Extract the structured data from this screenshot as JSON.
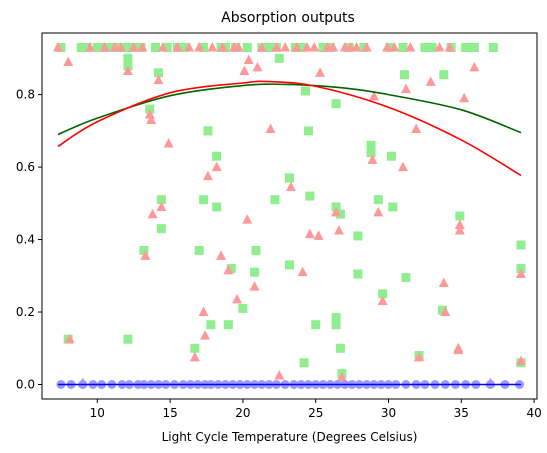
{
  "chart_data": {
    "type": "scatter",
    "title": "Absorption outputs",
    "xlabel": "Light Cycle Temperature (Degrees Celsius)",
    "ylabel": "",
    "xlim": [
      6.2,
      40.2
    ],
    "ylim": [
      -0.04,
      0.97
    ],
    "xticks": [
      10,
      15,
      20,
      25,
      30,
      35,
      40
    ],
    "yticks": [
      0.0,
      0.2,
      0.4,
      0.6,
      0.8
    ],
    "ytick_labels": [
      "0.0",
      "0.2",
      "0.4",
      "0.6",
      "0.8"
    ],
    "grid": false,
    "series": [
      {
        "marker": "square",
        "color": "#90EE90",
        "points": [
          [
            7.5,
            0.93
          ],
          [
            8.0,
            0.125
          ],
          [
            8.9,
            0.93
          ],
          [
            9.3,
            0.93
          ],
          [
            10.0,
            0.93
          ],
          [
            10.5,
            0.93
          ],
          [
            11.0,
            0.93
          ],
          [
            11.5,
            0.93
          ],
          [
            12.0,
            0.93
          ],
          [
            12.1,
            0.9
          ],
          [
            12.1,
            0.88
          ],
          [
            12.1,
            0.125
          ],
          [
            12.5,
            0.93
          ],
          [
            13.0,
            0.93
          ],
          [
            13.2,
            0.37
          ],
          [
            13.6,
            0.76
          ],
          [
            14.0,
            0.93
          ],
          [
            14.2,
            0.86
          ],
          [
            14.4,
            0.51
          ],
          [
            14.4,
            0.43
          ],
          [
            14.8,
            0.93
          ],
          [
            15.5,
            0.93
          ],
          [
            16.0,
            0.93
          ],
          [
            16.7,
            0.1
          ],
          [
            17.0,
            0.37
          ],
          [
            17.3,
            0.51
          ],
          [
            17.3,
            0.93
          ],
          [
            17.6,
            0.7
          ],
          [
            17.8,
            0.165
          ],
          [
            18.2,
            0.63
          ],
          [
            18.2,
            0.49
          ],
          [
            18.5,
            0.93
          ],
          [
            18.8,
            0.93
          ],
          [
            19.2,
            0.32
          ],
          [
            19.0,
            0.165
          ],
          [
            19.5,
            0.93
          ],
          [
            20.0,
            0.21
          ],
          [
            20.3,
            0.93
          ],
          [
            20.8,
            0.31
          ],
          [
            20.9,
            0.37
          ],
          [
            21.3,
            0.93
          ],
          [
            21.8,
            0.93
          ],
          [
            22.2,
            0.51
          ],
          [
            22.3,
            0.93
          ],
          [
            22.5,
            0.9
          ],
          [
            23.2,
            0.57
          ],
          [
            23.2,
            0.33
          ],
          [
            23.6,
            0.93
          ],
          [
            24.0,
            0.93
          ],
          [
            24.2,
            0.06
          ],
          [
            24.3,
            0.81
          ],
          [
            24.5,
            0.7
          ],
          [
            24.6,
            0.52
          ],
          [
            25.0,
            0.165
          ],
          [
            25.5,
            0.93
          ],
          [
            26.0,
            0.93
          ],
          [
            26.4,
            0.775
          ],
          [
            26.4,
            0.49
          ],
          [
            26.4,
            0.185
          ],
          [
            26.4,
            0.165
          ],
          [
            26.7,
            0.1
          ],
          [
            26.8,
            0.03
          ],
          [
            26.7,
            0.47
          ],
          [
            27.3,
            0.93
          ],
          [
            27.9,
            0.41
          ],
          [
            27.9,
            0.305
          ],
          [
            28.3,
            0.93
          ],
          [
            28.8,
            0.66
          ],
          [
            28.8,
            0.64
          ],
          [
            29.3,
            0.51
          ],
          [
            29.6,
            0.25
          ],
          [
            30.1,
            0.93
          ],
          [
            30.2,
            0.63
          ],
          [
            30.3,
            0.49
          ],
          [
            31.0,
            0.93
          ],
          [
            31.1,
            0.855
          ],
          [
            31.2,
            0.295
          ],
          [
            32.1,
            0.08
          ],
          [
            32.5,
            0.93
          ],
          [
            33.0,
            0.93
          ],
          [
            33.7,
            0.205
          ],
          [
            33.8,
            0.855
          ],
          [
            34.3,
            0.93
          ],
          [
            34.9,
            0.465
          ],
          [
            35.3,
            0.93
          ],
          [
            35.9,
            0.93
          ],
          [
            37.2,
            0.93
          ],
          [
            39.1,
            0.385
          ],
          [
            39.1,
            0.32
          ],
          [
            39.1,
            0.06
          ]
        ]
      },
      {
        "marker": "triangle",
        "color": "#FF9999",
        "points": [
          [
            7.3,
            0.93
          ],
          [
            8.0,
            0.89
          ],
          [
            8.1,
            0.125
          ],
          [
            9.0,
            0.005
          ],
          [
            9.5,
            0.93
          ],
          [
            10.5,
            0.93
          ],
          [
            11.2,
            0.93
          ],
          [
            11.6,
            0.93
          ],
          [
            12.1,
            0.865
          ],
          [
            12.5,
            0.93
          ],
          [
            13.1,
            0.93
          ],
          [
            13.3,
            0.355
          ],
          [
            13.6,
            0.745
          ],
          [
            13.7,
            0.73
          ],
          [
            13.8,
            0.47
          ],
          [
            14.2,
            0.84
          ],
          [
            14.4,
            0.49
          ],
          [
            14.5,
            0.93
          ],
          [
            14.9,
            0.665
          ],
          [
            15.5,
            0.93
          ],
          [
            16.3,
            0.93
          ],
          [
            16.7,
            0.075
          ],
          [
            17.0,
            0.93
          ],
          [
            17.3,
            0.2
          ],
          [
            17.4,
            0.135
          ],
          [
            17.6,
            0.575
          ],
          [
            17.9,
            0.93
          ],
          [
            18.2,
            0.6
          ],
          [
            18.5,
            0.355
          ],
          [
            18.6,
            0.93
          ],
          [
            19.0,
            0.315
          ],
          [
            19.4,
            0.93
          ],
          [
            19.6,
            0.235
          ],
          [
            19.7,
            0.93
          ],
          [
            20.1,
            0.865
          ],
          [
            20.3,
            0.455
          ],
          [
            20.4,
            0.895
          ],
          [
            20.8,
            0.27
          ],
          [
            21.0,
            0.875
          ],
          [
            21.3,
            0.93
          ],
          [
            21.9,
            0.705
          ],
          [
            22.3,
            0.93
          ],
          [
            22.5,
            0.025
          ],
          [
            22.9,
            0.93
          ],
          [
            23.3,
            0.545
          ],
          [
            23.7,
            0.93
          ],
          [
            24.1,
            0.31
          ],
          [
            24.4,
            0.93
          ],
          [
            24.6,
            0.415
          ],
          [
            24.9,
            0.93
          ],
          [
            25.2,
            0.41
          ],
          [
            25.3,
            0.86
          ],
          [
            25.8,
            0.93
          ],
          [
            26.2,
            0.93
          ],
          [
            26.4,
            0.475
          ],
          [
            26.6,
            0.425
          ],
          [
            26.8,
            0.02
          ],
          [
            27.0,
            0.93
          ],
          [
            27.4,
            0.93
          ],
          [
            27.8,
            0.93
          ],
          [
            28.5,
            0.93
          ],
          [
            28.9,
            0.62
          ],
          [
            29.0,
            0.795
          ],
          [
            29.3,
            0.475
          ],
          [
            29.6,
            0.23
          ],
          [
            29.9,
            0.93
          ],
          [
            30.4,
            0.93
          ],
          [
            31.0,
            0.6
          ],
          [
            31.2,
            0.815
          ],
          [
            31.5,
            0.93
          ],
          [
            31.9,
            0.705
          ],
          [
            32.1,
            0.075
          ],
          [
            32.9,
            0.835
          ],
          [
            33.5,
            0.93
          ],
          [
            33.8,
            0.28
          ],
          [
            33.9,
            0.2
          ],
          [
            34.2,
            0.93
          ],
          [
            34.9,
            0.44
          ],
          [
            34.9,
            0.425
          ],
          [
            34.8,
            0.1
          ],
          [
            34.8,
            0.095
          ],
          [
            35.2,
            0.79
          ],
          [
            35.9,
            0.875
          ],
          [
            37.0,
            0.005
          ],
          [
            39.1,
            0.305
          ],
          [
            39.1,
            0.065
          ]
        ]
      },
      {
        "marker": "circle",
        "color": "#9999FF",
        "points": [
          [
            7.5,
            0.0
          ],
          [
            8.2,
            0.0
          ],
          [
            9.0,
            0.0
          ],
          [
            9.7,
            0.0
          ],
          [
            10.3,
            0.0
          ],
          [
            11.0,
            0.0
          ],
          [
            11.7,
            0.0
          ],
          [
            12.2,
            0.0
          ],
          [
            12.8,
            0.0
          ],
          [
            13.2,
            0.0
          ],
          [
            13.7,
            0.0
          ],
          [
            14.2,
            0.0
          ],
          [
            14.7,
            0.0
          ],
          [
            15.3,
            0.0
          ],
          [
            15.9,
            0.0
          ],
          [
            16.4,
            0.0
          ],
          [
            16.9,
            0.0
          ],
          [
            17.4,
            0.0
          ],
          [
            17.8,
            0.0
          ],
          [
            18.3,
            0.0
          ],
          [
            18.8,
            0.0
          ],
          [
            19.3,
            0.0
          ],
          [
            19.8,
            0.0
          ],
          [
            20.3,
            0.0
          ],
          [
            20.8,
            0.0
          ],
          [
            21.3,
            0.0
          ],
          [
            21.8,
            0.0
          ],
          [
            22.3,
            0.0
          ],
          [
            22.9,
            0.0
          ],
          [
            23.5,
            0.0
          ],
          [
            24.0,
            0.0
          ],
          [
            24.5,
            0.0
          ],
          [
            25.0,
            0.0
          ],
          [
            25.5,
            0.0
          ],
          [
            26.0,
            0.0
          ],
          [
            26.5,
            0.0
          ],
          [
            27.0,
            0.0
          ],
          [
            27.5,
            0.0
          ],
          [
            28.0,
            0.0
          ],
          [
            28.5,
            0.0
          ],
          [
            29.0,
            0.0
          ],
          [
            29.5,
            0.0
          ],
          [
            30.0,
            0.0
          ],
          [
            30.5,
            0.0
          ],
          [
            31.2,
            0.0
          ],
          [
            31.9,
            0.0
          ],
          [
            32.5,
            0.0
          ],
          [
            33.2,
            0.0
          ],
          [
            33.9,
            0.0
          ],
          [
            34.6,
            0.0
          ],
          [
            35.3,
            0.0
          ],
          [
            36.0,
            0.0
          ],
          [
            37.0,
            0.0
          ],
          [
            38.0,
            0.0
          ],
          [
            39.0,
            0.0
          ]
        ]
      }
    ],
    "curves": [
      {
        "color": "#006400",
        "points": [
          [
            7.3,
            0.69
          ],
          [
            10,
            0.735
          ],
          [
            15,
            0.797
          ],
          [
            20,
            0.825
          ],
          [
            23.2,
            0.828
          ],
          [
            27,
            0.818
          ],
          [
            30,
            0.8
          ],
          [
            35,
            0.758
          ],
          [
            39.1,
            0.695
          ]
        ]
      },
      {
        "color": "#FF0000",
        "points": [
          [
            7.3,
            0.657
          ],
          [
            10,
            0.725
          ],
          [
            15,
            0.805
          ],
          [
            20,
            0.832
          ],
          [
            21.8,
            0.836
          ],
          [
            25,
            0.823
          ],
          [
            30,
            0.765
          ],
          [
            35,
            0.675
          ],
          [
            39.1,
            0.577
          ]
        ]
      },
      {
        "color": "#0000FF",
        "points": [
          [
            7.3,
            0.0
          ],
          [
            39.1,
            0.0
          ]
        ]
      }
    ]
  }
}
